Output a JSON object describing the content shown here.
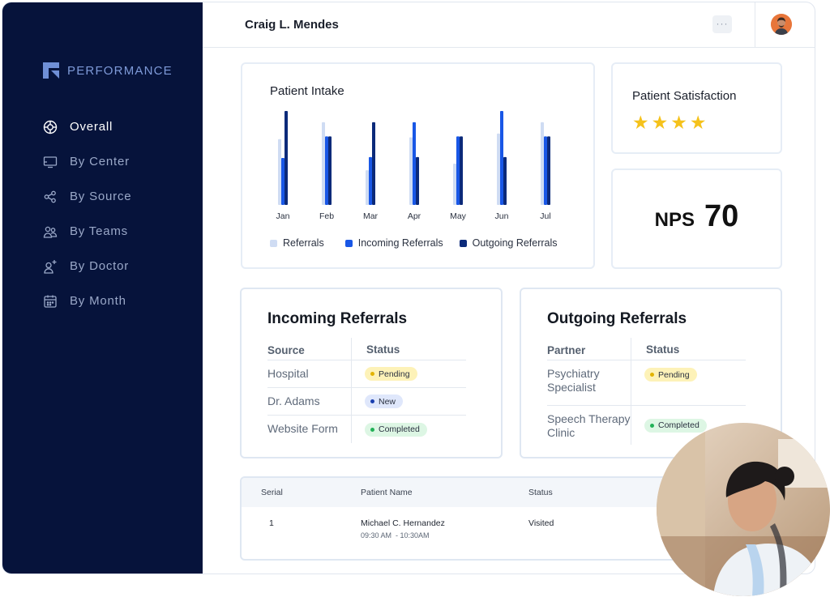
{
  "brand": {
    "name": "PERFORMANCE"
  },
  "sidebar": {
    "items": [
      {
        "label": "Overall",
        "icon": "target-icon",
        "active": true
      },
      {
        "label": "By Center",
        "icon": "screen-icon",
        "active": false
      },
      {
        "label": "By Source",
        "icon": "share-icon",
        "active": false
      },
      {
        "label": "By Teams",
        "icon": "team-icon",
        "active": false
      },
      {
        "label": "By Doctor",
        "icon": "add-user-icon",
        "active": false
      },
      {
        "label": "By Month",
        "icon": "calendar-icon",
        "active": false
      }
    ]
  },
  "header": {
    "user_name": "Craig L. Mendes",
    "more_label": "···"
  },
  "intake": {
    "title": "Patient Intake",
    "chart_data": {
      "type": "bar",
      "categories": [
        "Jan",
        "Feb",
        "Mar",
        "Apr",
        "May",
        "Jun",
        "Jul"
      ],
      "series": [
        {
          "name": "Referrals",
          "color": "#cfdcf3",
          "values": [
            70,
            88,
            37,
            72,
            44,
            76,
            88
          ]
        },
        {
          "name": "Incoming Referrals",
          "color": "#1957e6",
          "values": [
            50,
            73,
            51,
            88,
            73,
            100,
            73
          ]
        },
        {
          "name": "Outgoing Referrals",
          "color": "#0b2a7a",
          "values": [
            100,
            73,
            88,
            51,
            73,
            51,
            73
          ]
        }
      ],
      "ylim": [
        0,
        100
      ]
    }
  },
  "satisfaction": {
    "title": "Patient Satisfaction",
    "stars": 4,
    "star_glyph": "★"
  },
  "nps": {
    "label": "NPS",
    "value": "70"
  },
  "incoming": {
    "title": "Incoming Referrals",
    "columns": [
      "Source",
      "Status"
    ],
    "rows": [
      {
        "source": "Hospital",
        "status": "Pending",
        "kind": "pending"
      },
      {
        "source": "Dr. Adams",
        "status": "New",
        "kind": "new"
      },
      {
        "source": "Website Form",
        "status": "Completed",
        "kind": "completed"
      }
    ]
  },
  "outgoing": {
    "title": "Outgoing Referrals",
    "columns": [
      "Partner",
      "Status"
    ],
    "rows": [
      {
        "partner": "Psychiatry Specialist",
        "status": "Pending",
        "kind": "pending"
      },
      {
        "partner": "Speech Therapy Clinic",
        "status": "Completed",
        "kind": "completed"
      }
    ]
  },
  "patients": {
    "columns": [
      "Serial",
      "Patient Name",
      "Status"
    ],
    "rows": [
      {
        "serial": "1",
        "name": "Michael C. Hernandez",
        "time": "09:30 AM  - 10:30AM",
        "status": "Visited"
      }
    ]
  }
}
